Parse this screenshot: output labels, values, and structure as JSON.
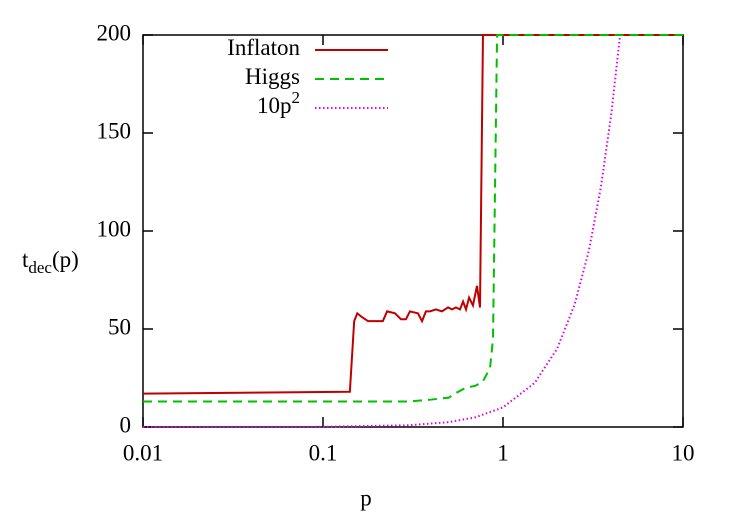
{
  "chart_data": {
    "type": "line",
    "xlabel": "p",
    "ylabel": "t",
    "ylabel_sub": "dec",
    "ylabel_end": "(p)",
    "xscale": "log",
    "xlim": [
      0.01,
      10
    ],
    "xticks": [
      0.01,
      0.1,
      1,
      10
    ],
    "ylim": [
      0,
      200
    ],
    "yticks": [
      0,
      50,
      100,
      150,
      200
    ],
    "legend": "upper-left",
    "series": [
      {
        "name": "Inflaton",
        "color": "#c00000",
        "dash": "solid",
        "x": [
          0.01,
          0.141,
          0.149,
          0.155,
          0.165,
          0.178,
          0.215,
          0.227,
          0.251,
          0.271,
          0.289,
          0.304,
          0.337,
          0.355,
          0.373,
          0.393,
          0.424,
          0.458,
          0.495,
          0.521,
          0.548,
          0.577,
          0.6,
          0.623,
          0.648,
          0.681,
          0.717,
          0.745,
          0.774,
          10
        ],
        "values": [
          17,
          18,
          54,
          58,
          56,
          54,
          54,
          59,
          58,
          55,
          55,
          59,
          58,
          54,
          59,
          59,
          60,
          59,
          61,
          60,
          61,
          60,
          64,
          60,
          66,
          62,
          72,
          61,
          200,
          200
        ]
      },
      {
        "name": "Higgs",
        "color": "#00c000",
        "dash": "dashed",
        "x": [
          0.01,
          0.3,
          0.4,
          0.5,
          0.54,
          0.62,
          0.7,
          0.77,
          0.847,
          0.88,
          0.927,
          10
        ],
        "values": [
          13,
          13,
          14,
          15,
          17,
          20,
          21,
          23,
          30,
          45,
          200,
          200
        ]
      },
      {
        "name": "10p",
        "name_sup": "2",
        "color": "#e000e0",
        "dash": "dotted",
        "x": [
          0.01,
          0.1,
          0.3,
          0.5,
          0.7,
          1,
          1.5,
          2,
          2.5,
          3,
          3.5,
          4,
          4.47
        ],
        "values": [
          0.001,
          0.1,
          0.9,
          2.5,
          4.9,
          10,
          22.5,
          40,
          62.5,
          90,
          122.5,
          160,
          199.8
        ]
      }
    ]
  }
}
